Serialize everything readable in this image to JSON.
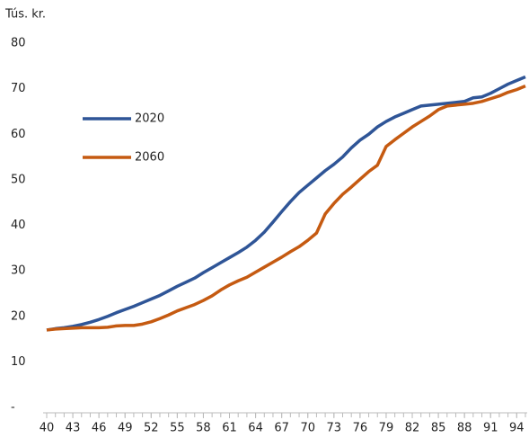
{
  "chart_data": {
    "type": "line",
    "ylabel": "Tús. kr.",
    "x": [
      40,
      41,
      42,
      43,
      44,
      45,
      46,
      47,
      48,
      49,
      50,
      51,
      52,
      53,
      54,
      55,
      56,
      57,
      58,
      59,
      60,
      61,
      62,
      63,
      64,
      65,
      66,
      67,
      68,
      69,
      70,
      71,
      72,
      73,
      74,
      75,
      76,
      77,
      78,
      79,
      80,
      81,
      82,
      83,
      84,
      85,
      86,
      87,
      88,
      89,
      90,
      91,
      92,
      93,
      94,
      95
    ],
    "series": [
      {
        "name": "2020",
        "color": "#2f5597",
        "values": [
          17,
          17.3,
          17.5,
          17.8,
          18.2,
          18.7,
          19.3,
          20,
          20.8,
          21.5,
          22.2,
          23,
          23.8,
          24.6,
          25.6,
          26.6,
          27.5,
          28.4,
          29.6,
          30.7,
          31.8,
          32.9,
          34,
          35.2,
          36.7,
          38.5,
          40.7,
          43,
          45.2,
          47.2,
          48.8,
          50.4,
          52,
          53.4,
          55,
          57,
          58.7,
          60,
          61.6,
          62.8,
          63.8,
          64.6,
          65.4,
          66.2,
          66.4,
          66.6,
          66.8,
          67,
          67.2,
          68,
          68.2,
          69,
          70,
          71,
          71.8,
          72.6
        ]
      },
      {
        "name": "2060",
        "color": "#c55a11",
        "values": [
          17,
          17.2,
          17.3,
          17.4,
          17.5,
          17.5,
          17.5,
          17.6,
          17.9,
          18,
          18,
          18.3,
          18.8,
          19.5,
          20.3,
          21.2,
          21.9,
          22.6,
          23.5,
          24.5,
          25.8,
          26.9,
          27.8,
          28.6,
          29.7,
          30.8,
          31.9,
          33,
          34.2,
          35.3,
          36.7,
          38.3,
          42.5,
          44.8,
          46.8,
          48.4,
          50.1,
          51.8,
          53.2,
          57.3,
          58.8,
          60.2,
          61.6,
          62.8,
          64,
          65.4,
          66.2,
          66.4,
          66.6,
          66.8,
          67.2,
          67.8,
          68.4,
          69.2,
          69.8,
          70.6
        ]
      }
    ],
    "xlim": [
      40,
      95
    ],
    "xticks": [
      40,
      43,
      46,
      49,
      52,
      55,
      58,
      61,
      64,
      67,
      70,
      73,
      76,
      79,
      82,
      85,
      88,
      91,
      94
    ],
    "ylim": [
      0,
      80
    ],
    "yticks": [
      {
        "value": 0,
        "label": "-"
      },
      10,
      20,
      30,
      40,
      50,
      60,
      70,
      80
    ],
    "legend": "left"
  }
}
